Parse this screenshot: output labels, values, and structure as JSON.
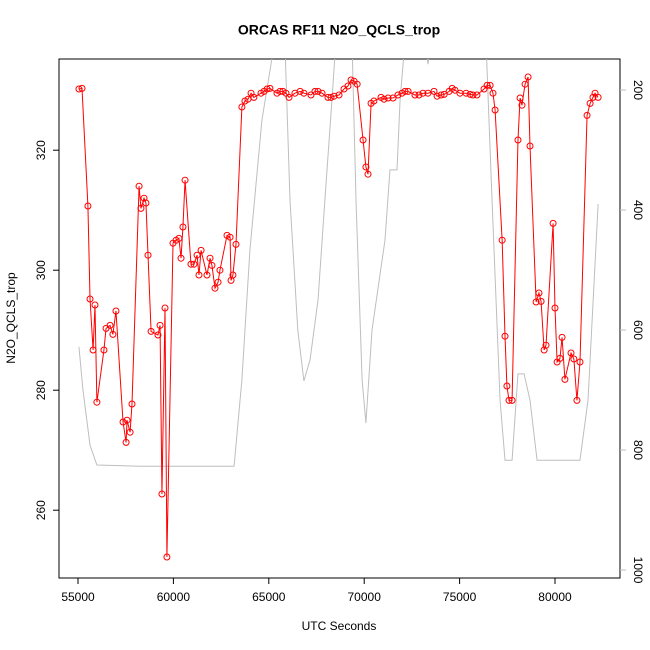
{
  "chart_data": {
    "type": "line",
    "title": "ORCAS RF11 N2O_QCLS_trop",
    "xlabel": "UTC Seconds",
    "ylabel": "N2O_QCLS_trop",
    "xlim": [
      54004,
      83407
    ],
    "xticks": [
      55000,
      60000,
      65000,
      70000,
      75000,
      80000
    ],
    "ylim": [
      248.7,
      335.2
    ],
    "yticks": [
      260,
      280,
      300,
      320
    ],
    "y2lim": [
      1013.3,
      148.3
    ],
    "y2ticks": [
      200,
      400,
      600,
      800,
      1000
    ],
    "series": [
      {
        "color": "#ff0000",
        "marker": "open-circle",
        "x": [
          55050,
          55210,
          55520,
          55630,
          55790,
          55890,
          55990,
          56360,
          56470,
          56680,
          56830,
          56990,
          57360,
          57520,
          57570,
          57730,
          57830,
          58200,
          58300,
          58460,
          58560,
          58670,
          58830,
          59190,
          59300,
          59400,
          59560,
          59660,
          59980,
          60140,
          60290,
          60400,
          60500,
          60610,
          60920,
          61080,
          61240,
          61340,
          61450,
          61760,
          61920,
          62020,
          62180,
          62340,
          62440,
          62810,
          62970,
          63020,
          63120,
          63280,
          63590,
          63750,
          63910,
          64070,
          64220,
          64590,
          64750,
          64910,
          65060,
          65430,
          65590,
          65740,
          65900,
          66060,
          66370,
          66640,
          66840,
          67210,
          67420,
          67580,
          67790,
          68100,
          68260,
          68420,
          68680,
          68940,
          69150,
          69310,
          69470,
          69630,
          69940,
          70090,
          70200,
          70360,
          70510,
          70880,
          71040,
          71250,
          71510,
          71770,
          71980,
          72140,
          72300,
          72660,
          72870,
          73080,
          73340,
          73660,
          73820,
          74030,
          74190,
          74450,
          74610,
          74760,
          75020,
          75340,
          75550,
          75700,
          75910,
          76280,
          76440,
          76600,
          76750,
          76860,
          77230,
          77380,
          77480,
          77590,
          77750,
          78060,
          78170,
          78270,
          78430,
          78590,
          78690,
          79010,
          79160,
          79270,
          79430,
          79530,
          79900,
          80000,
          80110,
          80260,
          80370,
          80520,
          80840,
          80990,
          81150,
          81310,
          81680,
          81840,
          81990,
          82100,
          82260
        ],
        "values": [
          330.2,
          330.3,
          310.7,
          295.2,
          286.7,
          294.2,
          278,
          286.7,
          290.3,
          290.8,
          289.3,
          293.2,
          274.7,
          271.3,
          275,
          273,
          277.7,
          314,
          310.3,
          312,
          311.2,
          302.5,
          289.8,
          289.2,
          290.8,
          262.7,
          293.7,
          252.2,
          304.5,
          305,
          305.3,
          302,
          307.2,
          315,
          301,
          301,
          302.5,
          299.2,
          303.3,
          299.2,
          302,
          300.8,
          297,
          298,
          300,
          305.8,
          305.5,
          298.3,
          299.2,
          304.3,
          327.2,
          328.2,
          328.5,
          329.5,
          328.8,
          329.5,
          329.8,
          330.2,
          330.3,
          329.5,
          329.8,
          329.8,
          329.5,
          328.8,
          329.5,
          329.8,
          329.5,
          329.2,
          329.8,
          329.8,
          329.5,
          328.8,
          328.8,
          329,
          329.2,
          330.2,
          330.7,
          331.7,
          331.5,
          331,
          321.7,
          317.2,
          316,
          327.8,
          328.2,
          328.8,
          328.5,
          328.7,
          328.7,
          329.2,
          329.5,
          329.8,
          329.8,
          329.2,
          329.2,
          329.5,
          329.5,
          329.8,
          329,
          329.2,
          329.3,
          329.8,
          330.3,
          330,
          329.5,
          329.5,
          329.3,
          329.2,
          329.2,
          330.2,
          330.8,
          330.8,
          329.5,
          326.7,
          305,
          289,
          280.7,
          278.3,
          278.3,
          321.7,
          328.7,
          327.5,
          331,
          332.2,
          320.7,
          294.7,
          296.2,
          294.8,
          286.7,
          287.5,
          307.8,
          293.7,
          284.7,
          285.3,
          288.8,
          281.8,
          286.2,
          285.2,
          278.3,
          284.7,
          325.8,
          327.8,
          328.8,
          329.5,
          328.8
        ]
      },
      {
        "color": "#bebebe",
        "axis": "y2",
        "x": [
          55050,
          55260,
          55630,
          55990,
          58250,
          63180,
          63590,
          64010,
          64640,
          65320,
          65840,
          66110,
          66520,
          66840,
          67160,
          67580,
          67940,
          68310,
          68520,
          69360,
          69570,
          69890,
          70090,
          70410,
          71090,
          71350,
          71720,
          71880,
          72140,
          73190,
          73340,
          73550,
          76380,
          76700,
          77120,
          77380,
          77750,
          78060,
          78380,
          78690,
          79060,
          81310,
          81730,
          82260
        ],
        "values": [
          628,
          700,
          792,
          825,
          827,
          827,
          683,
          467,
          250,
          117,
          117,
          383,
          600,
          685,
          650,
          550,
          383,
          217,
          117,
          117,
          383,
          683,
          755,
          600,
          450,
          333,
          333,
          217,
          117,
          117,
          157,
          117,
          117,
          383,
          717,
          817,
          817,
          673,
          673,
          717,
          817,
          817,
          717,
          390
        ]
      }
    ]
  }
}
